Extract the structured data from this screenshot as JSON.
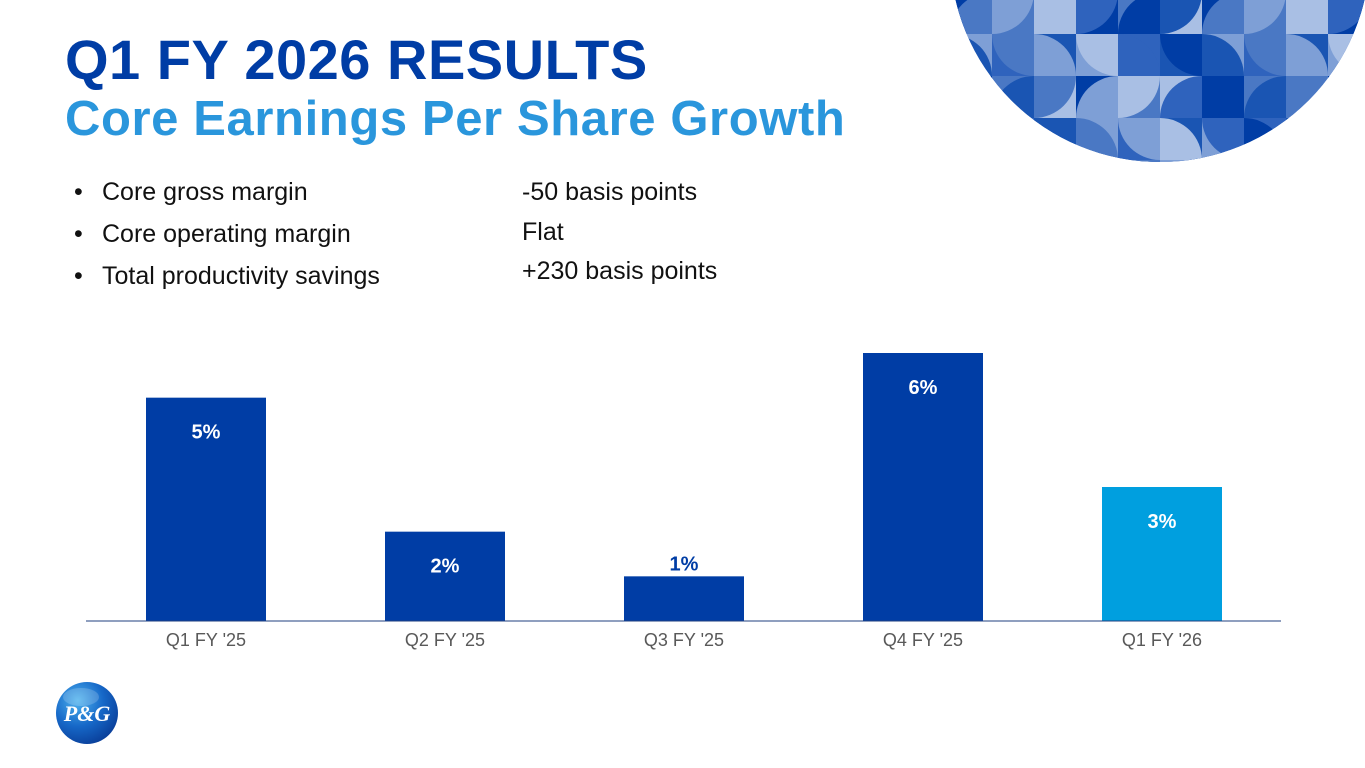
{
  "header": {
    "title": "Q1 FY 2026 RESULTS",
    "subtitle": "Core Earnings Per Share Growth"
  },
  "metrics": [
    {
      "label": "Core gross margin",
      "value": "-50 basis points"
    },
    {
      "label": "Core operating margin",
      "value": "Flat"
    },
    {
      "label": "Total productivity savings",
      "value": "+230 basis points"
    }
  ],
  "chart_data": {
    "type": "bar",
    "title": "Core Earnings Per Share Growth",
    "categories": [
      "Q1 FY '25",
      "Q2 FY '25",
      "Q3 FY '25",
      "Q4 FY '25",
      "Q1 FY '26"
    ],
    "values": [
      5,
      2,
      1,
      6,
      3
    ],
    "data_labels": [
      "5%",
      "2%",
      "1%",
      "6%",
      "3%"
    ],
    "unit": "%",
    "xlabel": "",
    "ylabel": "",
    "ylim": [
      0,
      6
    ],
    "grid": false,
    "legend": "none",
    "colors": [
      "#003da5",
      "#003da5",
      "#003da5",
      "#003da5",
      "#009fdf"
    ]
  },
  "logo": {
    "text": "P&G",
    "icon": "pg-logo-icon"
  },
  "colors": {
    "title": "#003da5",
    "subtitle": "#2a96dc",
    "bar_primary": "#003da5",
    "bar_highlight": "#009fdf",
    "axis": "#1f3f7f",
    "tick_label": "#595959"
  }
}
